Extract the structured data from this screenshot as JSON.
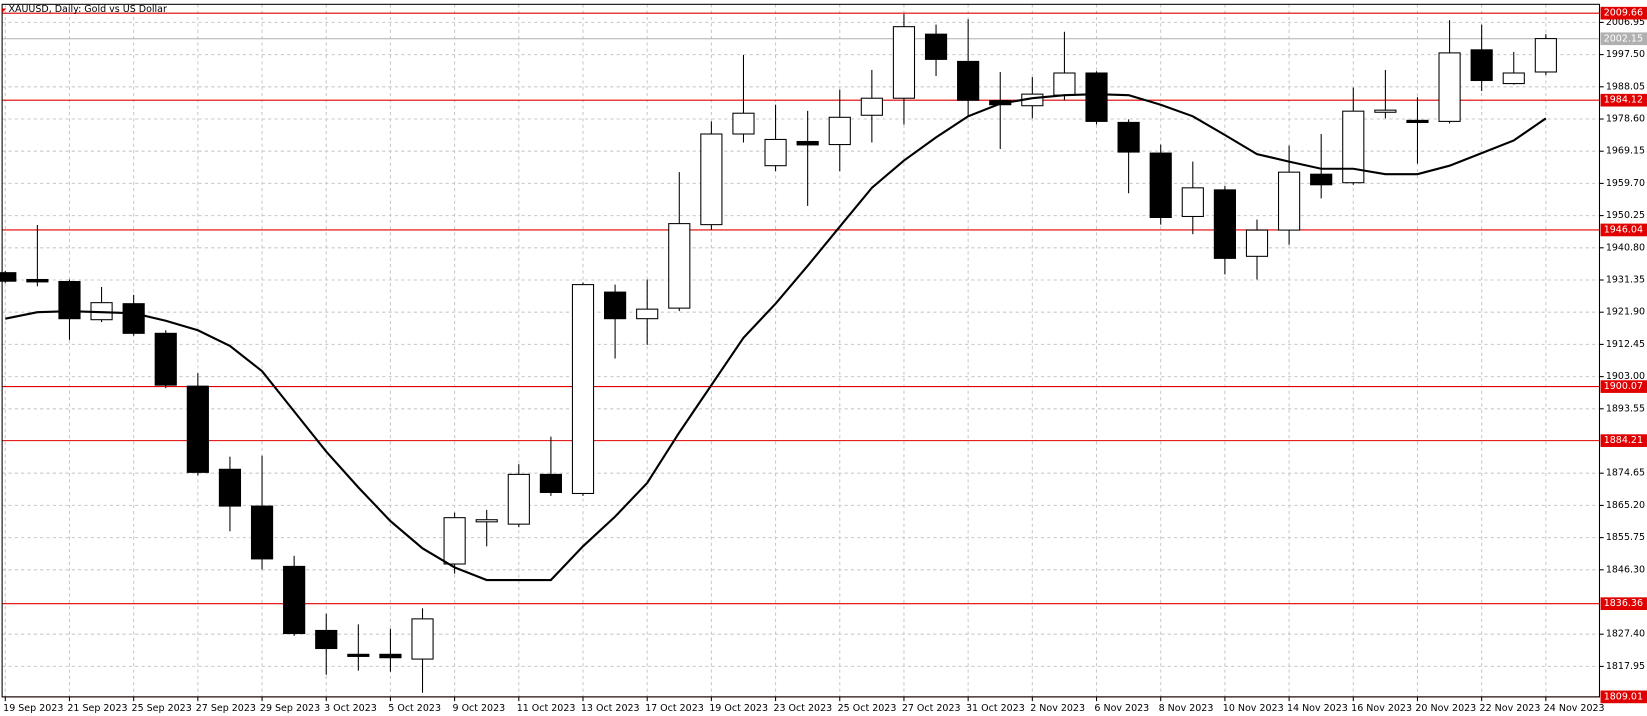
{
  "chart_data": {
    "type": "candlestick",
    "title": "XAUUSD, Daily:  Gold vs US Dollar",
    "categories": [
      "19 Sep 2023",
      null,
      "21 Sep 2023",
      null,
      "25 Sep 2023",
      null,
      "27 Sep 2023",
      null,
      "29 Sep 2023",
      null,
      "3 Oct 2023",
      null,
      "5 Oct 2023",
      null,
      "9 Oct 2023",
      null,
      "11 Oct 2023",
      null,
      "13 Oct 2023",
      null,
      "17 Oct 2023",
      null,
      "19 Oct 2023",
      null,
      "23 Oct 2023",
      null,
      "25 Oct 2023",
      null,
      "27 Oct 2023",
      null,
      "31 Oct 2023",
      null,
      "2 Nov 2023",
      null,
      "6 Nov 2023",
      null,
      "8 Nov 2023",
      null,
      "10 Nov 2023",
      null,
      "14 Nov 2023",
      null,
      "16 Nov 2023",
      null,
      "20 Nov 2023",
      null,
      "22 Nov 2023",
      null,
      "24 Nov 2023"
    ],
    "open": [
      1933.5,
      1931.5,
      1930.9,
      1919.7,
      1924.4,
      1915.7,
      1900.2,
      1875.8,
      1865.0,
      1847.3,
      1828.5,
      1821.5,
      1821.5,
      1820.1,
      1848.0,
      1860.5,
      1859.7,
      1874.3,
      1868.7,
      1927.8,
      1920.0,
      1923.1,
      1947.6,
      1974.2,
      1964.9,
      1972.0,
      1971.1,
      1979.7,
      1984.7,
      2003.5,
      1995.5,
      1984.0,
      1982.5,
      1985.6,
      1992.1,
      1977.6,
      1968.6,
      1950.0,
      1957.8,
      1938.3,
      1946.0,
      1962.4,
      1959.9,
      1980.7,
      1978.2,
      1977.9,
      1998.9,
      1989.0,
      1992.4
    ],
    "high": [
      1934.0,
      1947.5,
      1931.5,
      1929.3,
      1927.0,
      1916.6,
      1904.0,
      1879.5,
      1879.8,
      1850.4,
      1833.4,
      1830.3,
      1829.0,
      1835.0,
      1863.1,
      1863.9,
      1877.3,
      1885.4,
      1930.6,
      1930.0,
      1931.5,
      1963.0,
      1977.9,
      1997.4,
      1982.8,
      1981.0,
      1987.2,
      1993.0,
      2009.4,
      2006.3,
      2007.9,
      1992.4,
      1990.9,
      2004.2,
      1992.6,
      1978.5,
      1971.1,
      1966.1,
      1959.0,
      1949.1,
      1970.8,
      1974.2,
      1987.8,
      1993.0,
      1985.0,
      2007.6,
      2006.3,
      1998.3,
      2003.5
    ],
    "low": [
      1930.5,
      1929.5,
      1913.8,
      1919.0,
      1915.0,
      1899.6,
      1874.0,
      1857.6,
      1846.4,
      1826.9,
      1815.5,
      1816.7,
      1816.4,
      1810.2,
      1845.2,
      1853.2,
      1858.8,
      1868.0,
      1868.0,
      1908.3,
      1912.3,
      1922.2,
      1946.0,
      1971.7,
      1963.3,
      1953.1,
      1963.3,
      1971.7,
      1977.0,
      1991.2,
      1979.4,
      1969.8,
      1978.8,
      1984.1,
      1977.0,
      1956.8,
      1947.6,
      1944.8,
      1933.0,
      1931.5,
      1941.7,
      1955.3,
      1959.3,
      1978.8,
      1965.5,
      1977.3,
      1986.8,
      1988.7,
      1991.5
    ],
    "close": [
      1931.0,
      1930.8,
      1920.0,
      1924.7,
      1915.7,
      1900.5,
      1874.9,
      1865.0,
      1849.5,
      1827.6,
      1823.2,
      1821.0,
      1820.5,
      1831.9,
      1861.6,
      1861.0,
      1874.3,
      1869.0,
      1930.0,
      1920.0,
      1922.8,
      1947.9,
      1974.2,
      1980.3,
      1972.6,
      1971.0,
      1979.1,
      1984.7,
      2005.7,
      1996.1,
      1984.1,
      1982.8,
      1985.9,
      1992.1,
      1977.9,
      1968.9,
      1949.7,
      1958.4,
      1937.7,
      1946.0,
      1963.0,
      1959.3,
      1980.9,
      1981.2,
      1977.7,
      1998.0,
      1989.9,
      1992.1,
      2002.2
    ],
    "up_color": "#ffffff",
    "down_color": "#000000",
    "line": {
      "color": "#000000",
      "values": [
        1920.0,
        1921.9,
        1922.2,
        1921.9,
        1921.6,
        1919.4,
        1916.6,
        1912.0,
        1904.6,
        1892.8,
        1881.0,
        1870.5,
        1860.6,
        1852.6,
        1847.0,
        1843.3,
        1843.3,
        1843.3,
        1853.2,
        1861.9,
        1871.8,
        1886.6,
        1900.5,
        1914.4,
        1924.4,
        1935.5,
        1947.0,
        1958.4,
        1966.4,
        1973.2,
        1979.4,
        1983.1,
        1984.7,
        1985.6,
        1985.9,
        1985.6,
        1982.8,
        1979.4,
        1973.9,
        1968.3,
        1966.1,
        1964.0,
        1964.0,
        1962.4,
        1962.4,
        1964.9,
        1968.6,
        1972.3,
        1978.8
      ]
    },
    "levels": [
      {
        "value": 2009.66,
        "color": "#e00000"
      },
      {
        "value": 2002.15,
        "color": "#b0b0b0"
      },
      {
        "value": 1984.12,
        "color": "#e00000"
      },
      {
        "value": 1946.04,
        "color": "#e00000"
      },
      {
        "value": 1900.07,
        "color": "#e00000"
      },
      {
        "value": 1884.21,
        "color": "#e00000"
      },
      {
        "value": 1836.36,
        "color": "#e00000"
      },
      {
        "value": 1809.01,
        "color": "#e00000"
      }
    ],
    "ylim": [
      1809.0,
      2010.4
    ],
    "yticks": [
      2006.95,
      {
        "value": 1997.5,
        "label": "1997.50"
      },
      1988.05,
      {
        "value": 1978.6,
        "label": "1978.60"
      },
      1969.15,
      {
        "value": 1959.7,
        "label": "1959.70"
      },
      1950.25,
      {
        "value": 1940.8,
        "label": "1940.80"
      },
      1931.35,
      {
        "value": 1921.9,
        "label": "1921.90"
      },
      1912.45,
      {
        "value": 1903,
        "label": "1903.00"
      },
      1893.55,
      1874.65,
      {
        "value": 1865.2,
        "label": "1865.20"
      },
      1855.75,
      {
        "value": 1846.3,
        "label": "1846.30"
      },
      {
        "value": 1827.4,
        "label": "1827.40"
      },
      1817.95
    ],
    "grid": true
  }
}
